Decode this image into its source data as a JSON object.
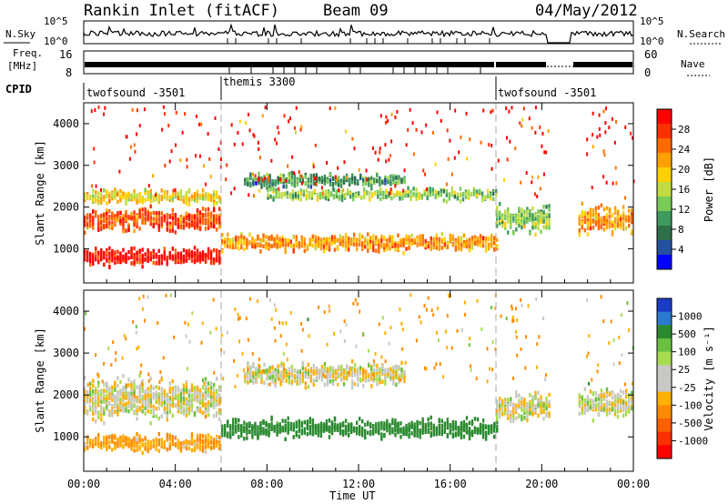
{
  "header": {
    "station": "Rankin Inlet (fitACF)",
    "beam": "Beam 09",
    "date": "04/May/2012"
  },
  "summary_panels": {
    "nsky_label": "N.Sky",
    "nsky_ticks": [
      "10^5",
      "10^0"
    ],
    "nsearch_label": "N.Search",
    "freq_label_line1": "Freq.",
    "freq_label_line2": "[MHz]",
    "freq_ticks": [
      "16",
      "8"
    ],
    "nave_ticks": [
      "60",
      "0"
    ],
    "nave_label": "Nave",
    "cpid_label": "CPID",
    "cpid_segments": [
      {
        "label": "twofsound -3501",
        "start_h": 0,
        "end_h": 6
      },
      {
        "label": "themis 3300",
        "start_h": 6,
        "end_h": 18
      },
      {
        "label": "twofsound -3501",
        "start_h": 18,
        "end_h": 24
      }
    ]
  },
  "colorbars": {
    "power": {
      "label": "Power [dB]",
      "ticks": [
        "28",
        "24",
        "20",
        "16",
        "12",
        "8",
        "4"
      ],
      "colors": [
        "#ff0000",
        "#ff3000",
        "#ff6a00",
        "#ffa000",
        "#ffd000",
        "#c0dc40",
        "#7acb56",
        "#3e9a5e",
        "#2f6f4a",
        "#2450a0",
        "#0000ff"
      ]
    },
    "velocity": {
      "label": "Velocity [m s⁻¹]",
      "ticks": [
        "1000",
        "500",
        "100",
        "25",
        "-25",
        "-100",
        "-500",
        "-1000"
      ],
      "colors": [
        "#1a3cc8",
        "#2a7bd0",
        "#2b8a2f",
        "#6ac040",
        "#a8dc50",
        "#c8c8c4",
        "#c8c8c4",
        "#ffb000",
        "#ff8a00",
        "#ff6000",
        "#ff3000",
        "#ff0000"
      ]
    }
  },
  "chart_data": [
    {
      "type": "heatmap",
      "title": "Power",
      "ylabel": "Slant Range [km]",
      "yticks": [
        "4000",
        "3000",
        "2000",
        "1000"
      ],
      "ylim": [
        180,
        4500
      ],
      "xlabel": "Time UT",
      "xlim": [
        0,
        24
      ],
      "xticks": [
        "00:00",
        "04:00",
        "08:00",
        "12:00",
        "16:00",
        "20:00",
        "00:00"
      ],
      "data_gaps_h": [
        [
          20.3,
          21.6
        ]
      ],
      "bands": [
        {
          "start_h": 0.0,
          "end_h": 6.0,
          "center_km": 800,
          "width_km": 300,
          "value_db": 28
        },
        {
          "start_h": 0.0,
          "end_h": 6.0,
          "center_km": 1700,
          "width_km": 400,
          "value_db": 24
        },
        {
          "start_h": 0.0,
          "end_h": 6.0,
          "center_km": 2250,
          "width_km": 250,
          "value_db": 16
        },
        {
          "start_h": 6.0,
          "end_h": 18.0,
          "center_km": 1150,
          "width_km": 300,
          "value_db": 20
        },
        {
          "start_h": 7.0,
          "end_h": 14.0,
          "center_km": 2650,
          "width_km": 250,
          "value_db": 8
        },
        {
          "start_h": 8.0,
          "end_h": 18.0,
          "center_km": 2300,
          "width_km": 200,
          "value_db": 12
        },
        {
          "start_h": 18.0,
          "end_h": 20.3,
          "center_km": 1700,
          "width_km": 500,
          "value_db": 12
        },
        {
          "start_h": 21.6,
          "end_h": 24.0,
          "center_km": 1700,
          "width_km": 500,
          "value_db": 20
        }
      ]
    },
    {
      "type": "heatmap",
      "title": "Velocity",
      "ylabel": "Slant Range [km]",
      "yticks": [
        "4000",
        "3000",
        "2000",
        "1000"
      ],
      "ylim": [
        180,
        4500
      ],
      "xlabel": "Time UT",
      "xlim": [
        0,
        24
      ],
      "xticks": [
        "00:00",
        "04:00",
        "08:00",
        "12:00",
        "16:00",
        "20:00",
        "00:00"
      ],
      "data_gaps_h": [
        [
          20.3,
          21.6
        ]
      ],
      "bands": [
        {
          "start_h": 0.0,
          "end_h": 6.0,
          "center_km": 850,
          "width_km": 300,
          "value_ms": -100
        },
        {
          "start_h": 0.0,
          "end_h": 6.0,
          "center_km": 1900,
          "width_km": 700,
          "value_ms": 0
        },
        {
          "start_h": 6.0,
          "end_h": 18.0,
          "center_km": 1200,
          "width_km": 350,
          "value_ms": 200
        },
        {
          "start_h": 7.0,
          "end_h": 14.0,
          "center_km": 2500,
          "width_km": 400,
          "value_ms": 0
        },
        {
          "start_h": 18.0,
          "end_h": 20.3,
          "center_km": 1700,
          "width_km": 500,
          "value_ms": 0
        },
        {
          "start_h": 21.6,
          "end_h": 24.0,
          "center_km": 1800,
          "width_km": 500,
          "value_ms": 0
        }
      ]
    }
  ]
}
